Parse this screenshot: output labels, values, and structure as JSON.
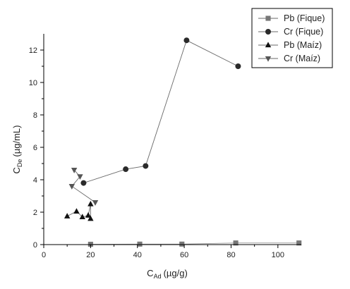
{
  "chart_data": {
    "type": "scatter",
    "xlabel": {
      "main": "C",
      "sub": "Ad",
      "unit": "(µg/g)"
    },
    "ylabel": {
      "main": "C",
      "sub": "De",
      "unit": "(µg/mL)"
    },
    "xlim": [
      0,
      110
    ],
    "ylim": [
      0,
      13
    ],
    "xticks": [
      0,
      20,
      40,
      60,
      80,
      100
    ],
    "yticks": [
      0,
      2,
      4,
      6,
      8,
      10,
      12
    ],
    "grid": false,
    "legend_position": "top-right",
    "series": [
      {
        "name": "Pb (Fique)",
        "marker": "square",
        "color": "#777777",
        "x": [
          20,
          41,
          59,
          82,
          109
        ],
        "y": [
          0.02,
          0.03,
          0.03,
          0.1,
          0.1
        ]
      },
      {
        "name": "Cr (Fique)",
        "marker": "circle",
        "color": "#2a2a2a",
        "x": [
          17,
          35,
          43.5,
          61,
          83
        ],
        "y": [
          3.8,
          4.65,
          4.85,
          12.6,
          11.0
        ]
      },
      {
        "name": "Pb (Maíz)",
        "marker": "triangle-up",
        "color": "#111111",
        "x": [
          10,
          14,
          16.5,
          19,
          20,
          20
        ],
        "y": [
          1.75,
          2.05,
          1.7,
          1.8,
          2.5,
          1.6
        ]
      },
      {
        "name": "Cr (Maíz)",
        "marker": "triangle-down",
        "color": "#555555",
        "x": [
          13,
          15.5,
          12,
          22
        ],
        "y": [
          4.6,
          4.2,
          3.6,
          2.6
        ]
      }
    ]
  }
}
